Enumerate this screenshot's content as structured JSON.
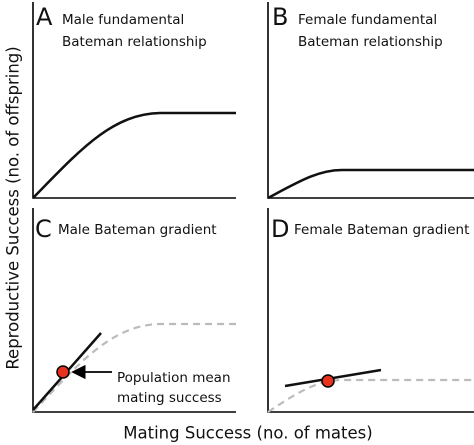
{
  "panels": [
    {
      "letter": "A",
      "lines": [
        "Male fundamental",
        "Bateman relationship"
      ]
    },
    {
      "letter": "B",
      "lines": [
        "Female fundamental",
        "Bateman relationship"
      ]
    },
    {
      "letter": "C",
      "lines": [
        "Male Bateman gradient"
      ]
    },
    {
      "letter": "D",
      "lines": [
        "Female Bateman gradient"
      ]
    }
  ],
  "annotation": [
    "Population mean",
    "mating success"
  ],
  "y_label": "Reproductive Success (no. of offspring)",
  "x_label": "Mating Success (no. of mates)"
}
